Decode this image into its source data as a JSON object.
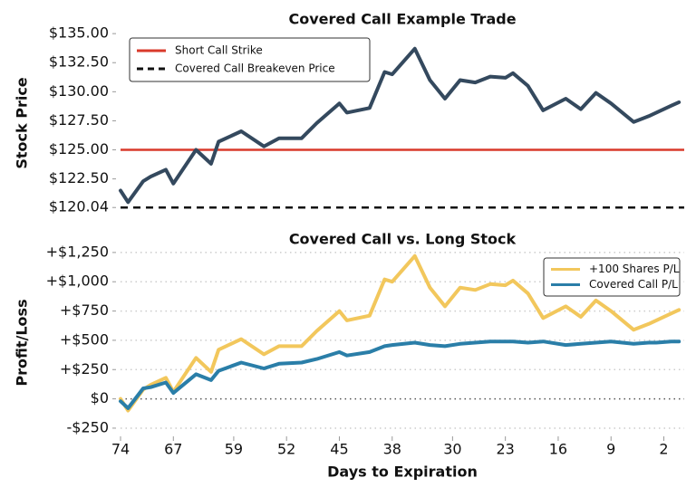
{
  "chart_data": [
    {
      "type": "line",
      "title": "Covered Call Example Trade",
      "y_label": "Stock Price",
      "x": [
        74,
        73,
        71,
        70,
        68,
        67,
        64,
        62,
        61,
        58,
        55,
        53,
        50,
        48,
        45,
        44,
        41,
        39,
        38,
        35,
        33,
        31,
        29,
        27,
        25,
        23,
        22,
        20,
        18,
        15,
        13,
        11,
        9,
        6,
        4,
        3,
        1,
        0
      ],
      "xlim": [
        74,
        -0.7
      ],
      "ylim": [
        119.2,
        135.4
      ],
      "yticks": [
        {
          "value": 120.04,
          "label": "$120.04"
        },
        {
          "value": 122.5,
          "label": "$122.50"
        },
        {
          "value": 125,
          "label": "$125.00"
        },
        {
          "value": 127.5,
          "label": "$127.50"
        },
        {
          "value": 130,
          "label": "$130.00"
        },
        {
          "value": 132.5,
          "label": "$132.50"
        },
        {
          "value": 135,
          "label": "$135.00"
        }
      ],
      "grid": false,
      "legend": "upper left",
      "series": [
        {
          "color": "#34495e",
          "values": [
            121.5,
            120.5,
            122.3,
            122.7,
            123.3,
            122.1,
            125.0,
            123.8,
            125.7,
            126.6,
            125.3,
            126.0,
            126.0,
            127.3,
            129.0,
            128.2,
            128.6,
            131.7,
            131.5,
            133.7,
            131.0,
            129.4,
            131.0,
            130.8,
            131.3,
            131.2,
            131.6,
            130.5,
            128.4,
            129.4,
            128.5,
            129.9,
            129.0,
            127.4,
            127.9,
            128.2,
            128.8,
            129.1
          ]
        }
      ],
      "reference_lines": [
        {
          "name": "Short Call Strike",
          "value": 125,
          "color": "#d93a2b",
          "style": "solid"
        },
        {
          "name": "Covered Call Breakeven Price",
          "value": 120.04,
          "color": "#111111",
          "style": "dashed"
        }
      ]
    },
    {
      "type": "line",
      "title": "Covered Call vs. Long Stock",
      "y_label": "Profit/Loss",
      "x_label": "Days to Expiration",
      "x": [
        74,
        73,
        71,
        70,
        68,
        67,
        64,
        62,
        61,
        58,
        55,
        53,
        50,
        48,
        45,
        44,
        41,
        39,
        38,
        35,
        33,
        31,
        29,
        27,
        25,
        23,
        22,
        20,
        18,
        15,
        13,
        11,
        9,
        6,
        4,
        3,
        1,
        0
      ],
      "xlim": [
        74,
        -0.7
      ],
      "xticks": [
        74,
        67,
        59,
        52,
        45,
        38,
        30,
        23,
        16,
        9,
        2
      ],
      "ylim": [
        -320,
        1280
      ],
      "yticks": [
        {
          "value": -250,
          "label": "-$250"
        },
        {
          "value": 0,
          "label": "$0"
        },
        {
          "value": 250,
          "label": "+$250"
        },
        {
          "value": 500,
          "label": "+$500"
        },
        {
          "value": 750,
          "label": "+$750"
        },
        {
          "value": 1000,
          "label": "+$1,000"
        },
        {
          "value": 1250,
          "label": "+$1,250"
        }
      ],
      "grid": true,
      "legend": "upper right",
      "series": [
        {
          "name": "+100 Shares P/L",
          "color": "#f2c75c",
          "values": [
            0,
            -100,
            80,
            120,
            180,
            60,
            350,
            230,
            420,
            510,
            380,
            450,
            450,
            580,
            750,
            670,
            710,
            1020,
            1000,
            1220,
            950,
            790,
            950,
            930,
            980,
            970,
            1010,
            900,
            690,
            790,
            700,
            840,
            750,
            590,
            640,
            670,
            730,
            760
          ]
        },
        {
          "name": "Covered Call P/L",
          "color": "#2a7ea8",
          "values": [
            -20,
            -80,
            90,
            100,
            140,
            50,
            210,
            160,
            240,
            310,
            260,
            300,
            310,
            340,
            400,
            370,
            400,
            450,
            460,
            480,
            460,
            450,
            470,
            480,
            490,
            490,
            490,
            480,
            490,
            460,
            470,
            480,
            490,
            470,
            480,
            480,
            490,
            490
          ]
        }
      ]
    }
  ]
}
